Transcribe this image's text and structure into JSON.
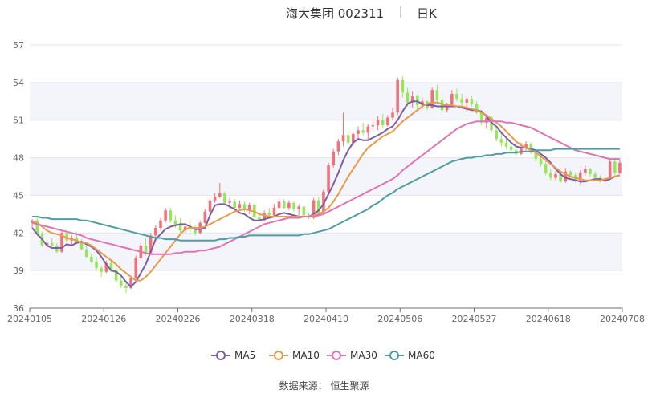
{
  "chart_data": {
    "type": "candlestick",
    "title": "海大集团 002311",
    "period": "日K",
    "ylim": [
      36,
      57
    ],
    "yticks": [
      36,
      39,
      42,
      45,
      48,
      51,
      54,
      57
    ],
    "xtick_labels": [
      "20240105",
      "20240126",
      "20240226",
      "20240318",
      "20240410",
      "20240506",
      "20240527",
      "20240618",
      "20240708"
    ],
    "up_color": "#f0717b",
    "down_color": "#96e65a",
    "grid": true,
    "legend_position": "bottom",
    "source": "数据来源：  恒生聚源",
    "series_colors": {
      "MA5": "#7b5ea7",
      "MA10": "#e89a4c",
      "MA30": "#de74b5",
      "MA60": "#4f9ea3"
    },
    "candles": [
      [
        42.8,
        43.1,
        42.4,
        43.0
      ],
      [
        43.0,
        43.2,
        41.8,
        41.9
      ],
      [
        41.9,
        42.1,
        40.9,
        41.0
      ],
      [
        41.0,
        41.3,
        40.6,
        41.2
      ],
      [
        41.2,
        41.6,
        40.9,
        41.0
      ],
      [
        41.0,
        41.2,
        40.4,
        40.5
      ],
      [
        40.5,
        42.2,
        40.4,
        42.0
      ],
      [
        42.0,
        42.3,
        41.3,
        41.4
      ],
      [
        41.4,
        41.8,
        41.0,
        41.6
      ],
      [
        41.6,
        42.1,
        41.2,
        41.3
      ],
      [
        41.3,
        41.5,
        40.6,
        40.7
      ],
      [
        40.7,
        41.0,
        40.0,
        40.1
      ],
      [
        40.1,
        40.4,
        39.6,
        39.7
      ],
      [
        39.7,
        40.1,
        39.0,
        39.2
      ],
      [
        39.2,
        39.4,
        38.5,
        38.9
      ],
      [
        38.9,
        39.8,
        38.8,
        39.6
      ],
      [
        39.6,
        39.9,
        38.9,
        39.0
      ],
      [
        39.0,
        39.2,
        38.0,
        38.2
      ],
      [
        38.2,
        38.5,
        37.6,
        37.8
      ],
      [
        37.8,
        38.1,
        37.2,
        37.6
      ],
      [
        37.6,
        38.6,
        37.5,
        38.4
      ],
      [
        38.4,
        40.2,
        38.3,
        40.0
      ],
      [
        40.0,
        41.2,
        39.8,
        41.0
      ],
      [
        41.0,
        41.6,
        40.2,
        40.4
      ],
      [
        40.4,
        42.0,
        40.3,
        41.8
      ],
      [
        41.8,
        42.6,
        41.6,
        42.4
      ],
      [
        42.4,
        43.2,
        42.2,
        43.0
      ],
      [
        43.0,
        44.0,
        42.8,
        43.8
      ],
      [
        43.8,
        44.0,
        42.8,
        43.0
      ],
      [
        43.0,
        43.4,
        42.4,
        42.6
      ],
      [
        42.6,
        43.2,
        42.0,
        42.2
      ],
      [
        42.2,
        42.7,
        41.9,
        42.5
      ],
      [
        42.5,
        42.9,
        42.1,
        42.3
      ],
      [
        42.3,
        42.6,
        41.8,
        42.0
      ],
      [
        42.0,
        43.0,
        41.9,
        42.8
      ],
      [
        42.8,
        43.9,
        42.7,
        43.7
      ],
      [
        43.7,
        44.8,
        43.6,
        44.6
      ],
      [
        44.6,
        45.2,
        44.4,
        44.9
      ],
      [
        44.9,
        46.0,
        44.8,
        45.2
      ],
      [
        45.2,
        45.3,
        44.2,
        44.4
      ],
      [
        44.4,
        44.8,
        43.9,
        44.5
      ],
      [
        44.5,
        44.7,
        43.8,
        44.0
      ],
      [
        44.0,
        44.6,
        43.9,
        44.3
      ],
      [
        44.3,
        44.5,
        43.7,
        43.8
      ],
      [
        43.8,
        44.4,
        43.5,
        44.2
      ],
      [
        44.2,
        44.3,
        43.2,
        43.3
      ],
      [
        43.3,
        43.5,
        42.9,
        43.0
      ],
      [
        43.0,
        43.8,
        42.9,
        43.6
      ],
      [
        43.6,
        44.0,
        43.2,
        43.4
      ],
      [
        43.4,
        44.3,
        43.3,
        44.0
      ],
      [
        44.0,
        44.8,
        43.9,
        44.5
      ],
      [
        44.5,
        44.7,
        43.9,
        44.0
      ],
      [
        44.0,
        44.6,
        43.8,
        44.4
      ],
      [
        44.4,
        44.5,
        43.7,
        43.9
      ],
      [
        43.9,
        44.3,
        43.4,
        44.1
      ],
      [
        44.1,
        44.2,
        43.3,
        43.4
      ],
      [
        43.4,
        43.6,
        43.1,
        43.2
      ],
      [
        43.2,
        44.8,
        43.1,
        44.6
      ],
      [
        44.6,
        44.9,
        43.4,
        43.6
      ],
      [
        43.6,
        45.5,
        43.5,
        45.3
      ],
      [
        45.3,
        47.6,
        45.2,
        47.4
      ],
      [
        47.4,
        48.7,
        47.2,
        48.5
      ],
      [
        48.5,
        49.5,
        48.2,
        49.3
      ],
      [
        49.3,
        51.6,
        48.9,
        49.8
      ],
      [
        49.8,
        50.2,
        49.0,
        49.2
      ],
      [
        49.2,
        50.1,
        49.0,
        49.9
      ],
      [
        49.9,
        50.5,
        49.4,
        50.2
      ],
      [
        50.2,
        50.8,
        49.8,
        50.0
      ],
      [
        50.0,
        50.7,
        49.5,
        50.5
      ],
      [
        50.5,
        51.2,
        50.1,
        50.6
      ],
      [
        50.6,
        51.3,
        50.2,
        51.0
      ],
      [
        51.0,
        51.5,
        50.4,
        50.6
      ],
      [
        50.6,
        51.4,
        50.5,
        51.2
      ],
      [
        51.2,
        52.0,
        51.0,
        51.6
      ],
      [
        51.6,
        54.4,
        51.4,
        54.2
      ],
      [
        54.2,
        54.5,
        52.8,
        53.2
      ],
      [
        53.2,
        53.6,
        52.1,
        52.4
      ],
      [
        52.4,
        53.3,
        52.0,
        52.9
      ],
      [
        52.9,
        53.0,
        51.9,
        52.2
      ],
      [
        52.2,
        52.8,
        51.9,
        52.5
      ],
      [
        52.5,
        52.6,
        51.8,
        52.0
      ],
      [
        52.0,
        53.6,
        51.9,
        53.4
      ],
      [
        53.4,
        53.8,
        52.4,
        52.6
      ],
      [
        52.6,
        52.9,
        51.6,
        51.8
      ],
      [
        51.8,
        52.4,
        51.6,
        52.3
      ],
      [
        52.3,
        53.4,
        52.2,
        53.1
      ],
      [
        53.1,
        53.5,
        52.5,
        52.7
      ],
      [
        52.7,
        53.1,
        52.2,
        52.4
      ],
      [
        52.4,
        52.9,
        51.7,
        52.7
      ],
      [
        52.7,
        52.9,
        52.1,
        52.3
      ],
      [
        52.3,
        52.5,
        51.5,
        51.6
      ],
      [
        51.6,
        51.8,
        50.6,
        50.8
      ],
      [
        50.8,
        51.4,
        50.3,
        51.2
      ],
      [
        51.2,
        51.3,
        50.0,
        50.2
      ],
      [
        50.2,
        50.5,
        49.3,
        49.5
      ],
      [
        49.5,
        49.9,
        48.9,
        49.2
      ],
      [
        49.2,
        49.6,
        48.7,
        48.9
      ],
      [
        48.9,
        49.3,
        48.4,
        48.6
      ],
      [
        48.6,
        48.8,
        48.1,
        48.3
      ],
      [
        48.3,
        49.2,
        48.2,
        48.8
      ],
      [
        48.8,
        49.3,
        48.6,
        49.1
      ],
      [
        49.1,
        49.2,
        48.3,
        48.4
      ],
      [
        48.4,
        48.7,
        47.7,
        47.9
      ],
      [
        47.9,
        48.1,
        47.3,
        47.5
      ],
      [
        47.5,
        47.7,
        46.6,
        46.8
      ],
      [
        46.8,
        47.1,
        46.2,
        46.4
      ],
      [
        46.4,
        46.9,
        46.2,
        46.7
      ],
      [
        46.7,
        46.8,
        46.0,
        46.1
      ],
      [
        46.1,
        47.2,
        46.0,
        46.9
      ],
      [
        46.9,
        47.0,
        46.4,
        46.6
      ],
      [
        46.6,
        46.8,
        46.0,
        46.2
      ],
      [
        46.2,
        47.0,
        45.9,
        46.8
      ],
      [
        46.8,
        47.4,
        46.6,
        47.1
      ],
      [
        47.1,
        47.2,
        46.5,
        46.7
      ],
      [
        46.7,
        46.9,
        46.3,
        46.4
      ],
      [
        46.4,
        46.6,
        46.0,
        46.1
      ],
      [
        46.1,
        46.5,
        45.8,
        46.3
      ],
      [
        46.3,
        47.9,
        46.2,
        47.7
      ],
      [
        47.7,
        48.0,
        46.6,
        46.8
      ],
      [
        46.8,
        47.8,
        46.7,
        47.6
      ]
    ],
    "series": [
      {
        "name": "MA5",
        "values": [
          42.4,
          41.9,
          41.5,
          41.0,
          40.8,
          40.8,
          40.8,
          41.1,
          41.0,
          41.2,
          41.3,
          41.1,
          40.9,
          40.6,
          40.1,
          39.5,
          39.0,
          38.9,
          38.6,
          38.1,
          37.7,
          38.1,
          38.8,
          39.5,
          40.5,
          41.5,
          41.9,
          42.3,
          42.5,
          42.6,
          42.7,
          42.7,
          42.5,
          42.3,
          42.3,
          42.4,
          43.4,
          44.2,
          44.3,
          44.3,
          44.1,
          43.9,
          43.6,
          43.5,
          43.2,
          43.0,
          43.0,
          43.1,
          43.2,
          43.3,
          43.5,
          43.6,
          43.5,
          43.4,
          43.3,
          43.3,
          43.3,
          43.5,
          43.8,
          44.3,
          45.1,
          45.9,
          46.8,
          47.8,
          48.6,
          49.2,
          49.5,
          49.4,
          49.4,
          49.6,
          49.8,
          50.0,
          50.3,
          50.5,
          51.0,
          51.7,
          52.3,
          52.5,
          52.5,
          52.3,
          52.2,
          52.2,
          52.1,
          52.1,
          52.1,
          52.1,
          52.1,
          52.0,
          51.9,
          51.8,
          51.8,
          51.7,
          51.3,
          50.8,
          50.5,
          50.0,
          49.6,
          49.2,
          48.9,
          48.8,
          48.8,
          48.7,
          48.6,
          48.3,
          48.0,
          47.6,
          47.1,
          46.7,
          46.4,
          46.3,
          46.2,
          46.1,
          46.1,
          46.2,
          46.3,
          46.3,
          46.2,
          46.3,
          46.5,
          46.6
        ]
      },
      {
        "name": "MA10",
        "values": [
          42.9,
          42.8,
          42.5,
          42.2,
          42.0,
          41.9,
          41.8,
          41.6,
          41.5,
          41.4,
          41.2,
          41.2,
          41.0,
          40.7,
          40.4,
          40.1,
          39.8,
          39.5,
          39.1,
          38.8,
          38.5,
          38.2,
          38.2,
          38.5,
          38.9,
          39.4,
          39.9,
          40.4,
          40.9,
          41.4,
          41.9,
          42.3,
          42.4,
          42.4,
          42.4,
          42.5,
          42.7,
          42.9,
          43.1,
          43.3,
          43.5,
          43.7,
          43.8,
          43.9,
          43.8,
          43.7,
          43.5,
          43.4,
          43.3,
          43.3,
          43.3,
          43.3,
          43.3,
          43.3,
          43.3,
          43.3,
          43.3,
          43.4,
          43.5,
          43.7,
          44.0,
          44.5,
          45.1,
          45.8,
          46.5,
          47.1,
          47.7,
          48.3,
          48.8,
          49.1,
          49.4,
          49.7,
          49.9,
          50.1,
          50.5,
          50.9,
          51.2,
          51.5,
          51.8,
          52.1,
          52.3,
          52.4,
          52.4,
          52.3,
          52.2,
          52.2,
          52.1,
          52.1,
          52.0,
          51.9,
          51.8,
          51.6,
          51.4,
          51.1,
          50.8,
          50.5,
          50.1,
          49.7,
          49.3,
          49.0,
          48.8,
          48.6,
          48.4,
          48.1,
          47.8,
          47.5,
          47.2,
          46.9,
          46.7,
          46.5,
          46.4,
          46.3,
          46.2,
          46.2,
          46.2,
          46.2,
          46.3,
          46.4,
          46.5,
          46.6
        ]
      },
      {
        "name": "MA30",
        "values": [
          42.8,
          42.7,
          42.6,
          42.5,
          42.4,
          42.3,
          42.2,
          42.1,
          42.0,
          41.9,
          41.8,
          41.6,
          41.5,
          41.4,
          41.3,
          41.2,
          41.1,
          41.0,
          40.9,
          40.8,
          40.7,
          40.6,
          40.5,
          40.4,
          40.3,
          40.3,
          40.3,
          40.3,
          40.3,
          40.4,
          40.4,
          40.5,
          40.5,
          40.5,
          40.6,
          40.6,
          40.7,
          40.8,
          40.9,
          41.1,
          41.3,
          41.5,
          41.7,
          41.9,
          42.1,
          42.3,
          42.5,
          42.7,
          42.8,
          42.9,
          43.0,
          43.1,
          43.2,
          43.2,
          43.2,
          43.3,
          43.3,
          43.3,
          43.4,
          43.5,
          43.7,
          43.9,
          44.1,
          44.3,
          44.5,
          44.7,
          44.9,
          45.1,
          45.3,
          45.5,
          45.7,
          45.9,
          46.1,
          46.3,
          46.6,
          47.0,
          47.3,
          47.6,
          47.9,
          48.2,
          48.5,
          48.8,
          49.1,
          49.4,
          49.7,
          50.0,
          50.3,
          50.5,
          50.7,
          50.8,
          50.9,
          50.9,
          50.9,
          50.9,
          50.9,
          50.9,
          50.8,
          50.8,
          50.7,
          50.6,
          50.5,
          50.4,
          50.2,
          50.0,
          49.8,
          49.6,
          49.4,
          49.2,
          49.0,
          48.8,
          48.6,
          48.5,
          48.4,
          48.3,
          48.2,
          48.1,
          48.0,
          47.9,
          47.9,
          47.9
        ]
      },
      {
        "name": "MA60",
        "values": [
          43.3,
          43.3,
          43.2,
          43.2,
          43.1,
          43.1,
          43.1,
          43.1,
          43.1,
          43.1,
          43.0,
          43.0,
          42.9,
          42.8,
          42.7,
          42.6,
          42.5,
          42.4,
          42.3,
          42.2,
          42.1,
          42.0,
          41.9,
          41.8,
          41.7,
          41.6,
          41.6,
          41.5,
          41.5,
          41.5,
          41.4,
          41.4,
          41.4,
          41.4,
          41.4,
          41.4,
          41.4,
          41.4,
          41.5,
          41.5,
          41.6,
          41.6,
          41.7,
          41.7,
          41.8,
          41.8,
          41.8,
          41.8,
          41.8,
          41.8,
          41.8,
          41.8,
          41.8,
          41.8,
          41.8,
          41.9,
          41.9,
          42.0,
          42.1,
          42.2,
          42.3,
          42.5,
          42.7,
          42.9,
          43.1,
          43.3,
          43.5,
          43.7,
          43.9,
          44.2,
          44.4,
          44.7,
          45.0,
          45.2,
          45.5,
          45.7,
          45.9,
          46.1,
          46.3,
          46.5,
          46.7,
          46.9,
          47.1,
          47.3,
          47.5,
          47.7,
          47.8,
          47.9,
          48.0,
          48.0,
          48.1,
          48.1,
          48.2,
          48.2,
          48.3,
          48.3,
          48.4,
          48.4,
          48.4,
          48.5,
          48.5,
          48.5,
          48.6,
          48.6,
          48.6,
          48.6,
          48.7,
          48.7,
          48.7,
          48.7,
          48.7,
          48.7,
          48.7,
          48.7,
          48.7,
          48.7,
          48.7,
          48.7,
          48.7,
          48.7
        ]
      }
    ]
  }
}
